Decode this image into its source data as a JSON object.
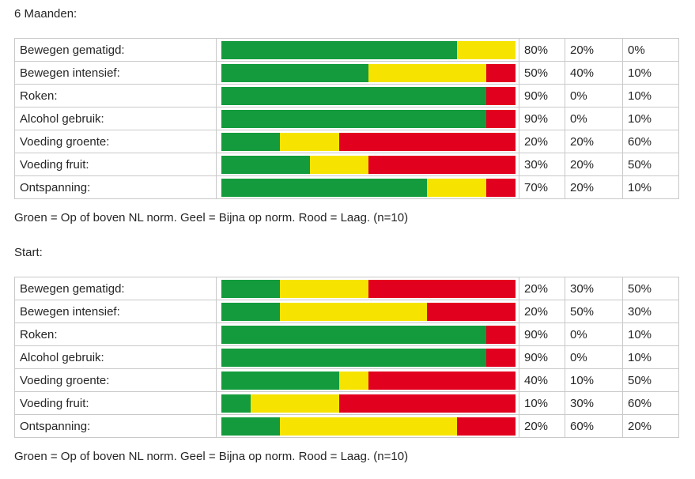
{
  "colors": {
    "green": "#149b3d",
    "yellow": "#f6e400",
    "red": "#e2001f",
    "border": "#c9c9c9",
    "text": "#262626"
  },
  "sections": [
    {
      "title": "6 Maanden:",
      "note": "Groen = Op of boven NL norm. Geel = Bijna op norm. Rood = Laag. (n=10)",
      "rows": [
        {
          "label": "Bewegen gematigd:",
          "green": 80,
          "yellow": 20,
          "red": 0
        },
        {
          "label": "Bewegen intensief:",
          "green": 50,
          "yellow": 40,
          "red": 10
        },
        {
          "label": "Roken:",
          "green": 90,
          "yellow": 0,
          "red": 10
        },
        {
          "label": "Alcohol gebruik:",
          "green": 90,
          "yellow": 0,
          "red": 10
        },
        {
          "label": "Voeding groente:",
          "green": 20,
          "yellow": 20,
          "red": 60
        },
        {
          "label": "Voeding fruit:",
          "green": 30,
          "yellow": 20,
          "red": 50
        },
        {
          "label": "Ontspanning:",
          "green": 70,
          "yellow": 20,
          "red": 10
        }
      ]
    },
    {
      "title": "Start:",
      "note": "Groen = Op of boven NL norm. Geel = Bijna op norm. Rood = Laag. (n=10)",
      "rows": [
        {
          "label": "Bewegen gematigd:",
          "green": 20,
          "yellow": 30,
          "red": 50
        },
        {
          "label": "Bewegen intensief:",
          "green": 20,
          "yellow": 50,
          "red": 30
        },
        {
          "label": "Roken:",
          "green": 90,
          "yellow": 0,
          "red": 10
        },
        {
          "label": "Alcohol gebruik:",
          "green": 90,
          "yellow": 0,
          "red": 10
        },
        {
          "label": "Voeding groente:",
          "green": 40,
          "yellow": 10,
          "red": 50
        },
        {
          "label": "Voeding fruit:",
          "green": 10,
          "yellow": 30,
          "red": 60
        },
        {
          "label": "Ontspanning:",
          "green": 20,
          "yellow": 60,
          "red": 20
        }
      ]
    }
  ],
  "chart_data": [
    {
      "type": "bar",
      "stacked": true,
      "orientation": "horizontal",
      "title": "6 Maanden:",
      "categories": [
        "Bewegen gematigd:",
        "Bewegen intensief:",
        "Roken:",
        "Alcohol gebruik:",
        "Voeding groente:",
        "Voeding fruit:",
        "Ontspanning:"
      ],
      "series": [
        {
          "name": "Groen = Op of boven NL norm.",
          "color": "#149b3d",
          "values": [
            80,
            50,
            90,
            90,
            20,
            30,
            70
          ]
        },
        {
          "name": "Geel = Bijna op norm.",
          "color": "#f6e400",
          "values": [
            20,
            40,
            0,
            0,
            20,
            20,
            20
          ]
        },
        {
          "name": "Rood = Laag.",
          "color": "#e2001f",
          "values": [
            0,
            10,
            10,
            10,
            60,
            50,
            10
          ]
        }
      ],
      "unit": "%",
      "xlim": [
        0,
        100
      ],
      "n": 10,
      "grid": false,
      "legend_position": "caption-below"
    },
    {
      "type": "bar",
      "stacked": true,
      "orientation": "horizontal",
      "title": "Start:",
      "categories": [
        "Bewegen gematigd:",
        "Bewegen intensief:",
        "Roken:",
        "Alcohol gebruik:",
        "Voeding groente:",
        "Voeding fruit:",
        "Ontspanning:"
      ],
      "series": [
        {
          "name": "Groen = Op of boven NL norm.",
          "color": "#149b3d",
          "values": [
            20,
            20,
            90,
            90,
            40,
            10,
            20
          ]
        },
        {
          "name": "Geel = Bijna op norm.",
          "color": "#f6e400",
          "values": [
            30,
            50,
            0,
            0,
            10,
            30,
            60
          ]
        },
        {
          "name": "Rood = Laag.",
          "color": "#e2001f",
          "values": [
            50,
            30,
            10,
            10,
            50,
            60,
            20
          ]
        }
      ],
      "unit": "%",
      "xlim": [
        0,
        100
      ],
      "n": 10,
      "grid": false,
      "legend_position": "caption-below"
    }
  ]
}
